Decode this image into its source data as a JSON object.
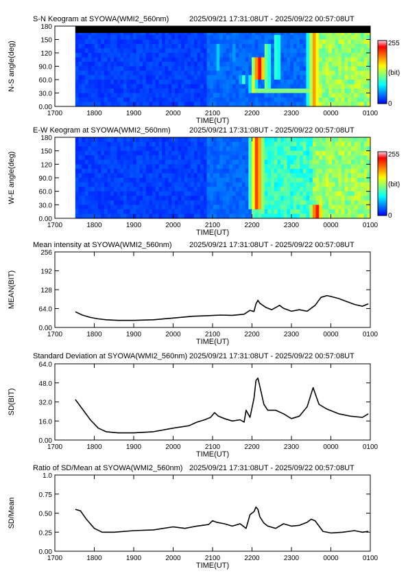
{
  "chart_data": [
    {
      "type": "heatmap",
      "title": "S-N Keogram at SYOWA(WMI2_560nm)",
      "subtitle": "2025/09/21 17:31:08UT - 2025/09/22 00:57:08UT",
      "xlabel": "TIME(UT)",
      "ylabel": "N-S angle(deg)",
      "xticks": [
        "1700",
        "1800",
        "1900",
        "2000",
        "2100",
        "2200",
        "2300",
        "0000",
        "0100"
      ],
      "yticks": [
        "0.00",
        "30.0",
        "60.0",
        "90.0",
        "120",
        "150",
        "180"
      ],
      "ylim": [
        0,
        180
      ],
      "colorbar": {
        "min": "0",
        "max": "255",
        "unit": "(bit)"
      },
      "features": [
        {
          "t": 21.1,
          "y0": 80,
          "y1": 140,
          "level": 0.35
        },
        {
          "t": 21.5,
          "y0": 100,
          "y1": 140,
          "level": 0.3
        },
        {
          "t": 21.75,
          "y0": 50,
          "y1": 70,
          "level": 0.45
        },
        {
          "t": 22.0,
          "y0": 30,
          "y1": 70,
          "level": 0.6
        },
        {
          "t": 22.15,
          "y0": 60,
          "y1": 110,
          "level": 0.9
        },
        {
          "t": 22.35,
          "y0": 40,
          "y1": 140,
          "level": 0.55
        },
        {
          "t": 22.6,
          "y0": 60,
          "y1": 160,
          "level": 0.5
        },
        {
          "t": 23.55,
          "y0": 0,
          "y1": 175,
          "level": 0.75
        }
      ]
    },
    {
      "type": "heatmap",
      "title": "E-W Keogram at SYOWA(WMI2_560nm)",
      "subtitle": "2025/09/21 17:31:08UT - 2025/09/22 00:57:08UT",
      "xlabel": "TIME(UT)",
      "ylabel": "W-E angle(deg)",
      "xticks": [
        "1700",
        "1800",
        "1900",
        "2000",
        "2100",
        "2200",
        "2300",
        "0000",
        "0100"
      ],
      "yticks": [
        "0.00",
        "30.0",
        "60.0",
        "90.0",
        "120",
        "150",
        "180"
      ],
      "ylim": [
        0,
        180
      ],
      "colorbar": {
        "min": "0",
        "max": "255",
        "unit": "(bit)"
      },
      "features": [
        {
          "t": 22.1,
          "y0": 20,
          "y1": 180,
          "level": 0.85
        },
        {
          "t": 22.45,
          "y0": 0,
          "y1": 180,
          "level": 0.5
        },
        {
          "t": 22.8,
          "y0": 0,
          "y1": 180,
          "level": 0.45
        },
        {
          "t": 23.6,
          "y0": 0,
          "y1": 30,
          "level": 0.9
        }
      ]
    },
    {
      "type": "line",
      "title": "Mean intensity at SYOWA(WMI2_560nm)",
      "subtitle": "2025/09/21 17:31:08UT - 2025/09/22 00:57:08UT",
      "xlabel": "TIME(UT)",
      "ylabel": "MEAN(BIT)",
      "xticks": [
        "1700",
        "1800",
        "1900",
        "2000",
        "2100",
        "2200",
        "2300",
        "0000",
        "0100"
      ],
      "yticks": [
        "0.00",
        "64.0",
        "128",
        "192",
        "256"
      ],
      "ylim": [
        0,
        256
      ],
      "x": [
        17.52,
        17.7,
        17.9,
        18.1,
        18.3,
        18.6,
        19.0,
        19.5,
        20.0,
        20.5,
        20.9,
        21.2,
        21.5,
        21.8,
        21.95,
        22.05,
        22.1,
        22.15,
        22.2,
        22.35,
        22.5,
        22.7,
        22.8,
        23.0,
        23.2,
        23.4,
        23.6,
        23.75,
        23.9,
        24.0,
        24.2,
        24.4,
        24.6,
        24.8,
        24.95
      ],
      "y": [
        53,
        42,
        34,
        29,
        26,
        24,
        24,
        26,
        32,
        38,
        40,
        42,
        41,
        45,
        58,
        54,
        80,
        92,
        82,
        68,
        60,
        75,
        65,
        55,
        60,
        55,
        75,
        102,
        108,
        105,
        98,
        88,
        78,
        72,
        80
      ]
    },
    {
      "type": "line",
      "title": "Standard Deviation at SYOWA(WMI2_560nm)",
      "subtitle": "2025/09/21 17:31:08UT - 2025/09/22 00:57:08UT",
      "xlabel": "TIME(UT)",
      "ylabel": "SD(BIT)",
      "xticks": [
        "1700",
        "1800",
        "1900",
        "2000",
        "2100",
        "2200",
        "2300",
        "0000",
        "0100"
      ],
      "yticks": [
        "0.00",
        "16.0",
        "32.0",
        "48.0",
        "64.0"
      ],
      "ylim": [
        0,
        64
      ],
      "x": [
        17.52,
        17.7,
        17.9,
        18.1,
        18.3,
        18.6,
        19.0,
        19.5,
        20.0,
        20.4,
        20.6,
        20.8,
        20.95,
        21.05,
        21.15,
        21.3,
        21.5,
        21.7,
        21.8,
        21.85,
        21.95,
        22.05,
        22.1,
        22.15,
        22.2,
        22.3,
        22.4,
        22.6,
        22.8,
        23.0,
        23.2,
        23.3,
        23.4,
        23.55,
        23.7,
        23.9,
        24.2,
        24.5,
        24.8,
        24.95
      ],
      "y": [
        34,
        26,
        17,
        10,
        7,
        6,
        6,
        7,
        10,
        12,
        15,
        17,
        19,
        23,
        20,
        18,
        16,
        17,
        15,
        25,
        19,
        35,
        50,
        52,
        45,
        30,
        25,
        25,
        22,
        18,
        20,
        24,
        28,
        44,
        30,
        26,
        22,
        20,
        19,
        22
      ]
    },
    {
      "type": "line",
      "title": "Ratio of SD/Mean at SYOWA(WMI2_560nm)",
      "subtitle": "2025/09/21 17:31:08UT - 2025/09/22 00:57:08UT",
      "xlabel": "TIME(UT)",
      "ylabel": "SD/Mean",
      "xticks": [
        "1700",
        "1800",
        "1900",
        "2000",
        "2100",
        "2200",
        "2300",
        "0000",
        "0100"
      ],
      "yticks": [
        "0.00",
        "0.25",
        "0.50",
        "0.75",
        "1.0"
      ],
      "ylim": [
        0,
        1
      ],
      "x": [
        17.52,
        17.65,
        17.8,
        18.0,
        18.2,
        18.5,
        19.0,
        19.5,
        20.0,
        20.3,
        20.6,
        20.9,
        21.0,
        21.1,
        21.3,
        21.5,
        21.7,
        21.85,
        21.95,
        22.05,
        22.1,
        22.15,
        22.2,
        22.3,
        22.4,
        22.6,
        22.8,
        23.0,
        23.2,
        23.4,
        23.5,
        23.6,
        23.8,
        24.0,
        24.3,
        24.6,
        24.8,
        24.95
      ],
      "y": [
        0.55,
        0.53,
        0.42,
        0.3,
        0.25,
        0.25,
        0.27,
        0.28,
        0.32,
        0.3,
        0.33,
        0.35,
        0.4,
        0.38,
        0.36,
        0.33,
        0.36,
        0.3,
        0.48,
        0.52,
        0.58,
        0.55,
        0.45,
        0.37,
        0.33,
        0.3,
        0.36,
        0.33,
        0.34,
        0.38,
        0.42,
        0.4,
        0.26,
        0.24,
        0.25,
        0.27,
        0.25,
        0.26
      ]
    }
  ]
}
